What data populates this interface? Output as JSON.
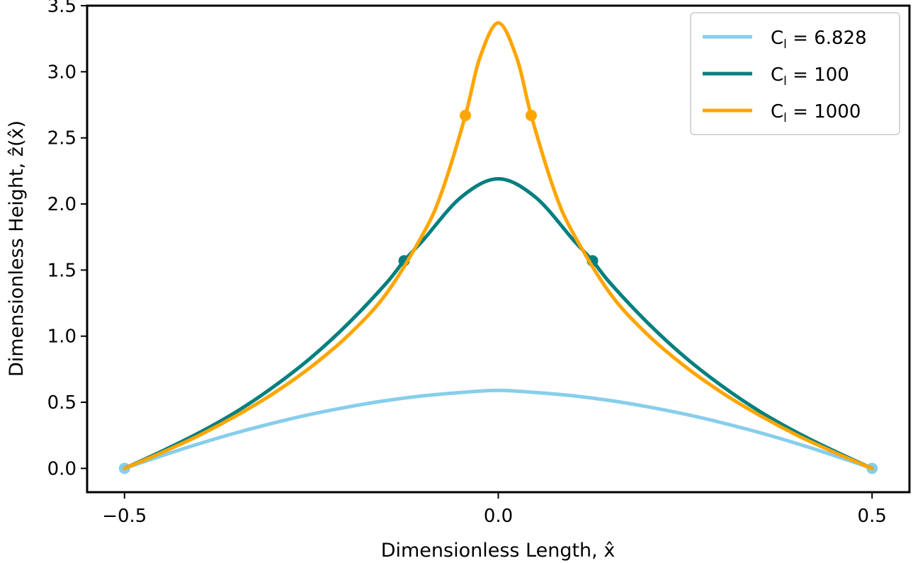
{
  "chart_data": {
    "type": "line",
    "title": "",
    "xlabel": "Dimensionless Length, x̂",
    "ylabel": "Dimensionless Height, ẑ(x̂)",
    "xlim": [
      -0.55,
      0.55
    ],
    "ylim": [
      -0.18,
      3.5
    ],
    "xticks": [
      -0.5,
      0.0,
      0.5
    ],
    "xtick_labels": [
      "−0.5",
      "0.0",
      "0.5"
    ],
    "yticks": [
      0.0,
      0.5,
      1.0,
      1.5,
      2.0,
      2.5,
      3.0,
      3.5
    ],
    "ytick_labels": [
      "0.0",
      "0.5",
      "1.0",
      "1.5",
      "2.0",
      "2.5",
      "3.0",
      "3.5"
    ],
    "grid": false,
    "legend_position": "top-right",
    "series": [
      {
        "name": "C_l = 6.828",
        "legend_main": "C",
        "legend_sub": "l",
        "legend_rest": " = 6.828",
        "color": "#87ceeb",
        "x": [
          -0.5,
          -0.45,
          -0.4,
          -0.35,
          -0.3,
          -0.25,
          -0.2,
          -0.15,
          -0.1,
          -0.05,
          0.0,
          0.05,
          0.1,
          0.15,
          0.2,
          0.25,
          0.3,
          0.35,
          0.4,
          0.45,
          0.5
        ],
        "y": [
          0.0,
          0.096,
          0.187,
          0.27,
          0.344,
          0.41,
          0.466,
          0.513,
          0.549,
          0.574,
          0.59,
          0.574,
          0.549,
          0.513,
          0.466,
          0.41,
          0.344,
          0.27,
          0.187,
          0.096,
          0.0
        ],
        "markers": [
          {
            "x": -0.5,
            "y": 0.0
          },
          {
            "x": 0.5,
            "y": 0.0
          }
        ]
      },
      {
        "name": "C_l = 100",
        "legend_main": "C",
        "legend_sub": "l",
        "legend_rest": " = 100",
        "color": "#007f7f",
        "x": [
          -0.5,
          -0.45,
          -0.4,
          -0.35,
          -0.3,
          -0.25,
          -0.2,
          -0.15,
          -0.126,
          -0.1,
          -0.05,
          0.0,
          0.05,
          0.1,
          0.126,
          0.15,
          0.2,
          0.25,
          0.3,
          0.35,
          0.4,
          0.45,
          0.5
        ],
        "y": [
          0.0,
          0.13,
          0.27,
          0.43,
          0.62,
          0.84,
          1.1,
          1.4,
          1.57,
          1.73,
          2.05,
          2.19,
          2.05,
          1.73,
          1.57,
          1.4,
          1.1,
          0.84,
          0.62,
          0.43,
          0.27,
          0.13,
          0.0
        ],
        "markers": [
          {
            "x": -0.126,
            "y": 1.57
          },
          {
            "x": 0.126,
            "y": 1.57
          }
        ]
      },
      {
        "name": "C_l = 1000",
        "legend_main": "C",
        "legend_sub": "l",
        "legend_rest": " = 1000",
        "color": "#ffa500",
        "x": [
          -0.5,
          -0.45,
          -0.4,
          -0.35,
          -0.3,
          -0.25,
          -0.2,
          -0.15,
          -0.1,
          -0.075,
          -0.044,
          -0.025,
          0.0,
          0.025,
          0.044,
          0.075,
          0.1,
          0.15,
          0.2,
          0.25,
          0.3,
          0.35,
          0.4,
          0.45,
          0.5
        ],
        "y": [
          0.0,
          0.12,
          0.25,
          0.4,
          0.57,
          0.77,
          1.01,
          1.32,
          1.78,
          2.1,
          2.67,
          3.1,
          3.37,
          3.1,
          2.67,
          2.1,
          1.78,
          1.32,
          1.01,
          0.77,
          0.57,
          0.4,
          0.25,
          0.12,
          0.0
        ],
        "markers": [
          {
            "x": -0.044,
            "y": 2.67
          },
          {
            "x": 0.044,
            "y": 2.67
          }
        ]
      }
    ]
  }
}
